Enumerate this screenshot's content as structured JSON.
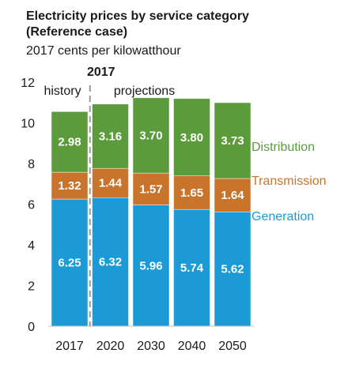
{
  "chart_data": {
    "type": "bar",
    "stacked": true,
    "title_line1": "Electricity prices by service category",
    "title_line2": "(Reference case)",
    "subtitle": "2017 cents per kilowatthour",
    "categories": [
      "2017",
      "2020",
      "2030",
      "2040",
      "2050"
    ],
    "series": [
      {
        "name": "Generation",
        "values": [
          6.25,
          6.32,
          5.96,
          5.74,
          5.62
        ],
        "labels": [
          "6.25",
          "6.32",
          "5.96",
          "5.74",
          "5.62"
        ],
        "color": "#1b9ad6"
      },
      {
        "name": "Transmission",
        "values": [
          1.32,
          1.44,
          1.57,
          1.65,
          1.64
        ],
        "labels": [
          "1.32",
          "1.44",
          "1.57",
          "1.65",
          "1.64"
        ],
        "color": "#c8742c"
      },
      {
        "name": "Distribution",
        "values": [
          2.98,
          3.16,
          3.7,
          3.8,
          3.73
        ],
        "labels": [
          "2.98",
          "3.16",
          "3.70",
          "3.80",
          "3.73"
        ],
        "color": "#5b9b3c"
      }
    ],
    "ylim": [
      0,
      12
    ],
    "yticks": [
      "0",
      "2",
      "4",
      "6",
      "8",
      "10",
      "12"
    ],
    "grid": false,
    "legend_position": "right",
    "annotations": {
      "divider_label": "2017",
      "history": "history",
      "projections": "projections"
    }
  }
}
